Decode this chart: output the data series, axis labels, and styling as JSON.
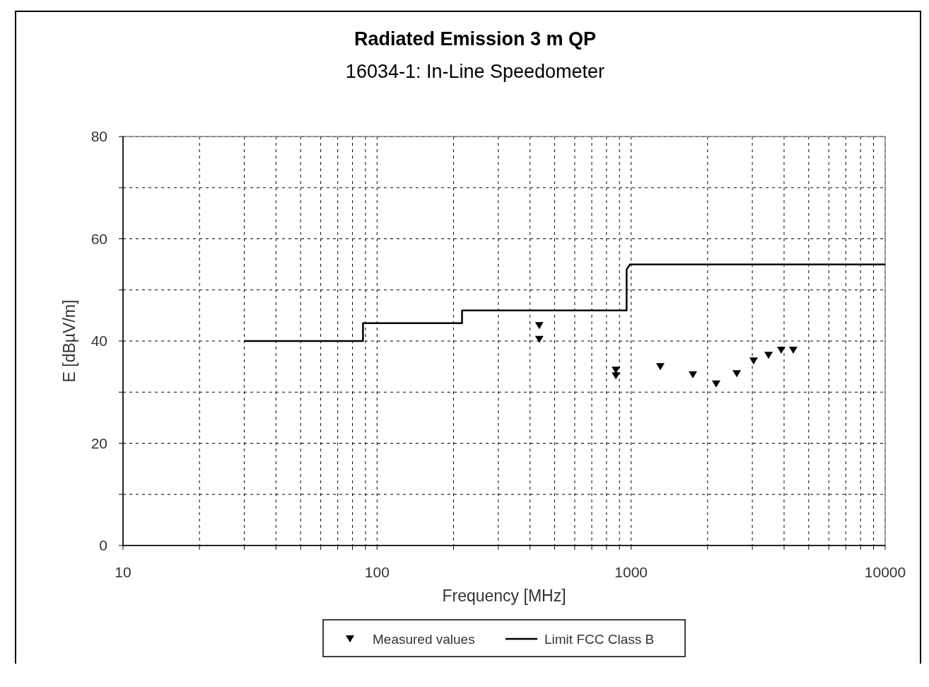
{
  "chart_data": {
    "type": "scatter",
    "title": "Radiated Emission  3 m  QP",
    "subtitle": "16034-1: In-Line Speedometer",
    "xlabel": "Frequency  [MHz]",
    "ylabel": "E  [dBµV/m]",
    "log": "x",
    "xlim": [
      10,
      10000
    ],
    "ylim": [
      0,
      80
    ],
    "xticks": [
      10,
      {
        "value": 20,
        "label": null
      },
      {
        "value": 30,
        "label": null
      },
      {
        "value": 40,
        "label": null
      },
      {
        "value": 50,
        "label": null
      },
      {
        "value": 60,
        "label": null
      },
      {
        "value": 70,
        "label": null
      },
      {
        "value": 80,
        "label": null
      },
      {
        "value": 90,
        "label": null
      },
      100,
      {
        "value": 200,
        "label": null
      },
      {
        "value": 300,
        "label": null
      },
      {
        "value": 400,
        "label": null
      },
      {
        "value": 500,
        "label": null
      },
      {
        "value": 600,
        "label": null
      },
      {
        "value": 700,
        "label": null
      },
      {
        "value": 800,
        "label": null
      },
      {
        "value": 900,
        "label": null
      },
      1000,
      {
        "value": 2000,
        "label": null
      },
      {
        "value": 3000,
        "label": null
      },
      {
        "value": 4000,
        "label": null
      },
      {
        "value": 5000,
        "label": null
      },
      {
        "value": 6000,
        "label": null
      },
      {
        "value": 7000,
        "label": null
      },
      {
        "value": 8000,
        "label": null
      },
      {
        "value": 9000,
        "label": null
      },
      10000
    ],
    "yticks": [
      0,
      {
        "value": 10,
        "label": null
      },
      20,
      {
        "value": 30,
        "label": null
      },
      40,
      {
        "value": 50,
        "label": null
      },
      60,
      {
        "value": 70,
        "label": null
      },
      80
    ],
    "grid": true,
    "legend": "bottom",
    "series": [
      {
        "name": "Measured values",
        "marker": "triangle",
        "color": "#000000",
        "x": [
          435,
          435,
          871,
          871,
          1303,
          1750,
          2162,
          2605,
          3036,
          3475,
          3898,
          4347
        ],
        "values": [
          43.0,
          40.3,
          34.3,
          33.2,
          35.0,
          33.4,
          31.6,
          33.6,
          36.1,
          37.2,
          38.2,
          38.2
        ]
      },
      {
        "name": "Limit FCC Class B",
        "type": "line",
        "marker": "none",
        "line_style": "solid",
        "color": "#000000",
        "x": [
          30,
          88,
          88,
          216,
          216,
          960,
          960,
          990,
          10000
        ],
        "values": [
          40,
          40,
          43.5,
          43.5,
          46,
          46,
          54,
          55,
          55
        ]
      }
    ]
  }
}
